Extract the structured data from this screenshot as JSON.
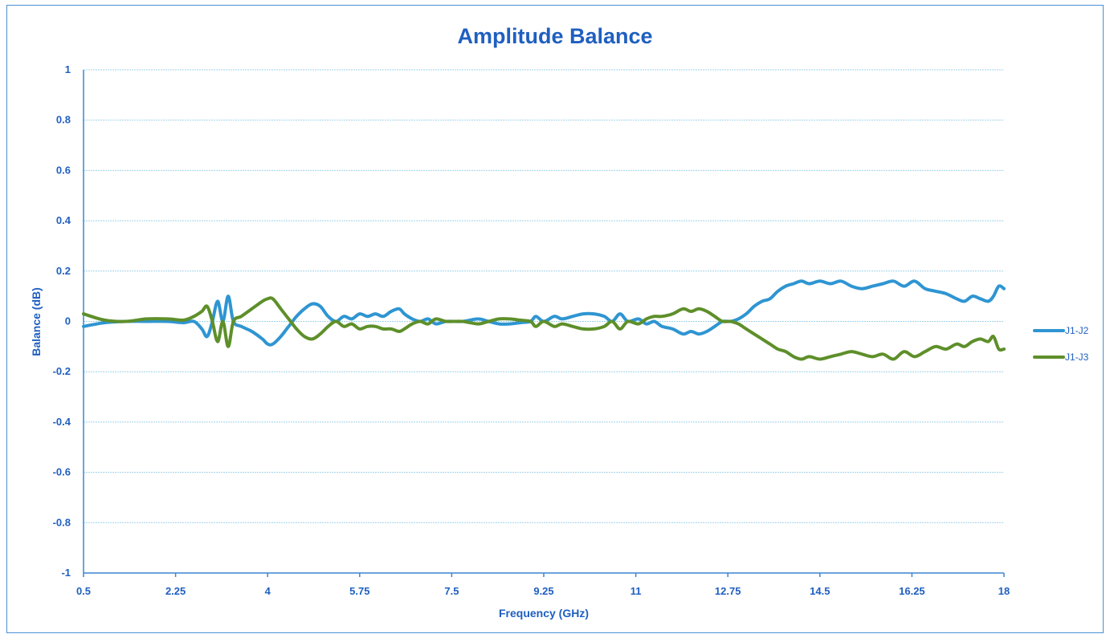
{
  "chart_data": {
    "type": "line",
    "title": "Amplitude Balance",
    "xlabel": "Frequency (GHz)",
    "ylabel": "Balance (dB)",
    "xlim": [
      0.5,
      18
    ],
    "ylim": [
      -1,
      1
    ],
    "x_ticks": [
      "0.5",
      "2.25",
      "4",
      "5.75",
      "7.5",
      "9.25",
      "11",
      "12.75",
      "14.5",
      "16.25",
      "18"
    ],
    "y_ticks": [
      "1",
      "0.8",
      "0.6",
      "0.4",
      "0.2",
      "0",
      "-0.2",
      "-0.4",
      "-0.6",
      "-0.8",
      "-1"
    ],
    "grid": true,
    "legend_position": "right",
    "series": [
      {
        "name": "J1-J2",
        "color": "#2f95d2",
        "points": [
          [
            0.5,
            -0.02
          ],
          [
            0.9,
            -0.005
          ],
          [
            1.3,
            0.0
          ],
          [
            1.7,
            0.0
          ],
          [
            2.1,
            0.0
          ],
          [
            2.4,
            -0.005
          ],
          [
            2.6,
            0.0
          ],
          [
            2.75,
            -0.03
          ],
          [
            2.85,
            -0.06
          ],
          [
            2.95,
            0.0
          ],
          [
            3.05,
            0.08
          ],
          [
            3.15,
            0.0
          ],
          [
            3.25,
            0.1
          ],
          [
            3.35,
            0.0
          ],
          [
            3.5,
            -0.02
          ],
          [
            3.7,
            -0.04
          ],
          [
            3.9,
            -0.07
          ],
          [
            4.0,
            -0.09
          ],
          [
            4.1,
            -0.09
          ],
          [
            4.25,
            -0.06
          ],
          [
            4.4,
            -0.02
          ],
          [
            4.55,
            0.02
          ],
          [
            4.7,
            0.05
          ],
          [
            4.85,
            0.07
          ],
          [
            5.0,
            0.06
          ],
          [
            5.15,
            0.02
          ],
          [
            5.3,
            0.0
          ],
          [
            5.45,
            0.02
          ],
          [
            5.6,
            0.01
          ],
          [
            5.75,
            0.03
          ],
          [
            5.9,
            0.02
          ],
          [
            6.05,
            0.03
          ],
          [
            6.2,
            0.02
          ],
          [
            6.35,
            0.04
          ],
          [
            6.5,
            0.05
          ],
          [
            6.6,
            0.03
          ],
          [
            6.75,
            0.01
          ],
          [
            6.9,
            0.0
          ],
          [
            7.05,
            0.01
          ],
          [
            7.2,
            -0.01
          ],
          [
            7.4,
            0.0
          ],
          [
            7.7,
            0.0
          ],
          [
            8.0,
            0.01
          ],
          [
            8.2,
            0.0
          ],
          [
            8.4,
            -0.01
          ],
          [
            8.6,
            -0.01
          ],
          [
            8.8,
            -0.005
          ],
          [
            9.0,
            0.0
          ],
          [
            9.1,
            0.02
          ],
          [
            9.25,
            0.0
          ],
          [
            9.45,
            0.02
          ],
          [
            9.6,
            0.01
          ],
          [
            9.8,
            0.02
          ],
          [
            10.0,
            0.03
          ],
          [
            10.2,
            0.03
          ],
          [
            10.4,
            0.02
          ],
          [
            10.55,
            0.0
          ],
          [
            10.7,
            0.03
          ],
          [
            10.85,
            0.0
          ],
          [
            11.05,
            0.01
          ],
          [
            11.2,
            -0.01
          ],
          [
            11.35,
            0.0
          ],
          [
            11.5,
            -0.02
          ],
          [
            11.7,
            -0.03
          ],
          [
            11.9,
            -0.05
          ],
          [
            12.05,
            -0.04
          ],
          [
            12.2,
            -0.05
          ],
          [
            12.35,
            -0.04
          ],
          [
            12.5,
            -0.02
          ],
          [
            12.65,
            0.0
          ],
          [
            12.8,
            0.0
          ],
          [
            12.95,
            0.01
          ],
          [
            13.1,
            0.03
          ],
          [
            13.25,
            0.06
          ],
          [
            13.4,
            0.08
          ],
          [
            13.55,
            0.09
          ],
          [
            13.7,
            0.12
          ],
          [
            13.85,
            0.14
          ],
          [
            14.0,
            0.15
          ],
          [
            14.15,
            0.16
          ],
          [
            14.3,
            0.15
          ],
          [
            14.5,
            0.16
          ],
          [
            14.7,
            0.15
          ],
          [
            14.9,
            0.16
          ],
          [
            15.1,
            0.14
          ],
          [
            15.3,
            0.13
          ],
          [
            15.5,
            0.14
          ],
          [
            15.7,
            0.15
          ],
          [
            15.9,
            0.16
          ],
          [
            16.1,
            0.14
          ],
          [
            16.3,
            0.16
          ],
          [
            16.5,
            0.13
          ],
          [
            16.7,
            0.12
          ],
          [
            16.9,
            0.11
          ],
          [
            17.1,
            0.09
          ],
          [
            17.25,
            0.08
          ],
          [
            17.4,
            0.1
          ],
          [
            17.55,
            0.09
          ],
          [
            17.7,
            0.08
          ],
          [
            17.8,
            0.1
          ],
          [
            17.9,
            0.14
          ],
          [
            18.0,
            0.13
          ]
        ]
      },
      {
        "name": "J1-J3",
        "color": "#5e8f2a",
        "points": [
          [
            0.5,
            0.03
          ],
          [
            0.9,
            0.005
          ],
          [
            1.3,
            0.0
          ],
          [
            1.7,
            0.01
          ],
          [
            2.1,
            0.01
          ],
          [
            2.4,
            0.005
          ],
          [
            2.6,
            0.02
          ],
          [
            2.75,
            0.04
          ],
          [
            2.85,
            0.06
          ],
          [
            2.95,
            0.0
          ],
          [
            3.05,
            -0.08
          ],
          [
            3.15,
            0.0
          ],
          [
            3.25,
            -0.1
          ],
          [
            3.35,
            0.0
          ],
          [
            3.5,
            0.02
          ],
          [
            3.7,
            0.05
          ],
          [
            3.9,
            0.08
          ],
          [
            4.0,
            0.09
          ],
          [
            4.1,
            0.09
          ],
          [
            4.25,
            0.05
          ],
          [
            4.4,
            0.01
          ],
          [
            4.55,
            -0.03
          ],
          [
            4.7,
            -0.06
          ],
          [
            4.85,
            -0.07
          ],
          [
            5.0,
            -0.05
          ],
          [
            5.15,
            -0.02
          ],
          [
            5.3,
            0.0
          ],
          [
            5.45,
            -0.02
          ],
          [
            5.6,
            -0.01
          ],
          [
            5.75,
            -0.03
          ],
          [
            5.9,
            -0.02
          ],
          [
            6.05,
            -0.02
          ],
          [
            6.2,
            -0.03
          ],
          [
            6.35,
            -0.03
          ],
          [
            6.5,
            -0.04
          ],
          [
            6.6,
            -0.03
          ],
          [
            6.75,
            -0.01
          ],
          [
            6.9,
            0.0
          ],
          [
            7.05,
            -0.01
          ],
          [
            7.2,
            0.01
          ],
          [
            7.4,
            0.0
          ],
          [
            7.7,
            0.0
          ],
          [
            8.0,
            -0.01
          ],
          [
            8.2,
            0.0
          ],
          [
            8.4,
            0.01
          ],
          [
            8.6,
            0.01
          ],
          [
            8.8,
            0.005
          ],
          [
            9.0,
            0.0
          ],
          [
            9.1,
            -0.02
          ],
          [
            9.25,
            0.0
          ],
          [
            9.45,
            -0.02
          ],
          [
            9.6,
            -0.01
          ],
          [
            9.8,
            -0.02
          ],
          [
            10.0,
            -0.03
          ],
          [
            10.2,
            -0.03
          ],
          [
            10.4,
            -0.02
          ],
          [
            10.55,
            0.0
          ],
          [
            10.7,
            -0.03
          ],
          [
            10.85,
            0.0
          ],
          [
            11.05,
            -0.01
          ],
          [
            11.2,
            0.01
          ],
          [
            11.35,
            0.02
          ],
          [
            11.5,
            0.02
          ],
          [
            11.7,
            0.03
          ],
          [
            11.9,
            0.05
          ],
          [
            12.05,
            0.04
          ],
          [
            12.2,
            0.05
          ],
          [
            12.35,
            0.04
          ],
          [
            12.5,
            0.02
          ],
          [
            12.65,
            0.0
          ],
          [
            12.8,
            0.0
          ],
          [
            12.95,
            -0.01
          ],
          [
            13.1,
            -0.03
          ],
          [
            13.25,
            -0.05
          ],
          [
            13.4,
            -0.07
          ],
          [
            13.55,
            -0.09
          ],
          [
            13.7,
            -0.11
          ],
          [
            13.85,
            -0.12
          ],
          [
            14.0,
            -0.14
          ],
          [
            14.15,
            -0.15
          ],
          [
            14.3,
            -0.14
          ],
          [
            14.5,
            -0.15
          ],
          [
            14.7,
            -0.14
          ],
          [
            14.9,
            -0.13
          ],
          [
            15.1,
            -0.12
          ],
          [
            15.3,
            -0.13
          ],
          [
            15.5,
            -0.14
          ],
          [
            15.7,
            -0.13
          ],
          [
            15.9,
            -0.15
          ],
          [
            16.1,
            -0.12
          ],
          [
            16.3,
            -0.14
          ],
          [
            16.5,
            -0.12
          ],
          [
            16.7,
            -0.1
          ],
          [
            16.9,
            -0.11
          ],
          [
            17.1,
            -0.09
          ],
          [
            17.25,
            -0.1
          ],
          [
            17.4,
            -0.08
          ],
          [
            17.55,
            -0.07
          ],
          [
            17.7,
            -0.08
          ],
          [
            17.8,
            -0.06
          ],
          [
            17.9,
            -0.11
          ],
          [
            18.0,
            -0.11
          ]
        ]
      }
    ]
  }
}
